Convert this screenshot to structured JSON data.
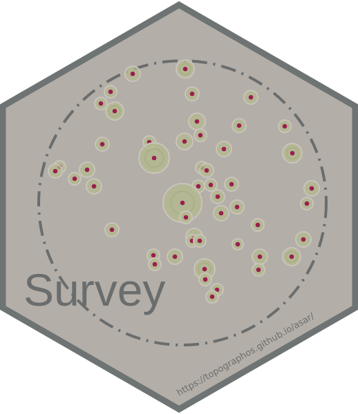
{
  "sticker": {
    "title": "Survey",
    "url": "https://topographos.github.io/asar/"
  },
  "colors": {
    "hex_fill": "#b3aea8",
    "hex_border": "#6e7373",
    "circle_stroke": "#6a6d6d",
    "site_fill": "#9a1f4f",
    "halo_fill": "#b4b98e"
  }
}
